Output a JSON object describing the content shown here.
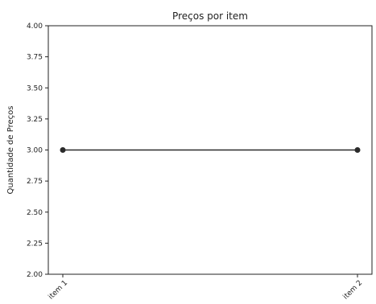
{
  "chart_data": {
    "type": "line",
    "title": "Preços por item",
    "xlabel": "",
    "ylabel": "Quantidade de Preços",
    "categories": [
      "item 1",
      "item 2"
    ],
    "series": [
      {
        "values": [
          3.0,
          3.0
        ],
        "color": "#2a2a2a",
        "marker": "circle"
      }
    ],
    "ylim": [
      2.0,
      4.0
    ],
    "yticks": [
      "2.00",
      "2.25",
      "2.50",
      "2.75",
      "3.00",
      "3.25",
      "3.50",
      "3.75",
      "4.00"
    ],
    "grid": false,
    "legend": "none"
  }
}
